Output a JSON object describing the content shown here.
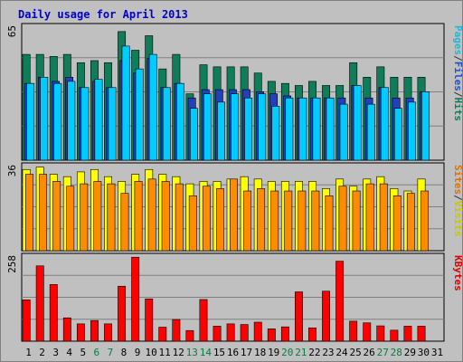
{
  "chart_data": {
    "type": "bar",
    "title": "Daily usage for April 2013",
    "categories": [
      "1",
      "2",
      "3",
      "4",
      "5",
      "6",
      "7",
      "8",
      "9",
      "10",
      "11",
      "12",
      "13",
      "14",
      "15",
      "16",
      "17",
      "18",
      "19",
      "20",
      "21",
      "22",
      "23",
      "24",
      "25",
      "26",
      "27",
      "28",
      "29",
      "30",
      "31"
    ],
    "weekend_days": [
      "6",
      "7",
      "13",
      "14",
      "20",
      "21",
      "27",
      "28"
    ],
    "panels": [
      {
        "id": "top",
        "ymax_label": "65",
        "ylim": [
          0,
          65
        ],
        "side_labels": [
          {
            "text": "Hits",
            "color": "#0f7d5a"
          },
          {
            "text": "/",
            "color": "#333333"
          },
          {
            "text": "Files",
            "color": "#2050c8"
          },
          {
            "text": "/",
            "color": "#333333"
          },
          {
            "text": "Pages",
            "color": "#1fb8d8"
          }
        ],
        "series": [
          {
            "name": "Hits",
            "color": "#0f7d5a",
            "values": [
              51,
              51,
              50,
              51,
              47,
              48,
              47,
              62,
              53,
              60,
              44,
              51,
              32,
              46,
              45,
              45,
              45,
              42,
              38,
              37,
              36,
              38,
              36,
              36,
              47,
              40,
              45,
              40,
              40,
              40
            ]
          },
          {
            "name": "Files",
            "color": "#2040c0",
            "values": [
              37,
              40,
              38,
              40,
              35,
              38,
              35,
              48,
              42,
              49,
              35,
              37,
              30,
              34,
              34,
              34,
              34,
              33,
              32,
              31,
              30,
              30,
              30,
              30,
              36,
              30,
              35,
              30,
              30,
              33
            ]
          },
          {
            "name": "Pages",
            "color": "#00ccff",
            "values": [
              37,
              40,
              37,
              38,
              35,
              39,
              35,
              55,
              44,
              51,
              35,
              37,
              25,
              32,
              28,
              32,
              30,
              32,
              26,
              30,
              30,
              30,
              30,
              27,
              36,
              27,
              35,
              25,
              28,
              33
            ]
          }
        ]
      },
      {
        "id": "middle",
        "ymax_label": "36",
        "ylim": [
          0,
          36
        ],
        "side_labels": [
          {
            "text": "Visits",
            "color": "#c8c800"
          },
          {
            "text": "/",
            "color": "#333333"
          },
          {
            "text": "Sites",
            "color": "#e07000"
          }
        ],
        "series": [
          {
            "name": "Visits",
            "color": "#ffff00",
            "values": [
              34,
              35,
              32,
              31,
              33,
              34,
              31,
              29,
              32,
              34,
              32,
              31,
              28,
              29,
              29,
              30,
              31,
              30,
              29,
              29,
              29,
              29,
              26,
              30,
              27,
              30,
              31,
              26,
              25,
              30
            ]
          },
          {
            "name": "Sites",
            "color": "#ff8c00",
            "values": [
              32,
              32,
              29,
              27,
              28,
              29,
              28,
              24,
              29,
              30,
              29,
              28,
              23,
              27,
              26,
              30,
              25,
              26,
              25,
              25,
              25,
              25,
              23,
              27,
              25,
              28,
              28,
              23,
              24,
              25
            ]
          }
        ]
      },
      {
        "id": "bottom",
        "ymax_label": "258",
        "ylim": [
          0,
          258
        ],
        "side_labels": [
          {
            "text": "KBytes",
            "color": "#e00000"
          }
        ],
        "series": [
          {
            "name": "KBytes",
            "color": "#ff0000",
            "values": [
              124,
              226,
              170,
              70,
              52,
              62,
              52,
              165,
              252,
              127,
              42,
              65,
              32,
              125,
              45,
              52,
              50,
              57,
              37,
              43,
              148,
              40,
              150,
              240,
              60,
              55,
              46,
              33,
              45,
              45
            ]
          }
        ]
      }
    ],
    "grid": true
  }
}
